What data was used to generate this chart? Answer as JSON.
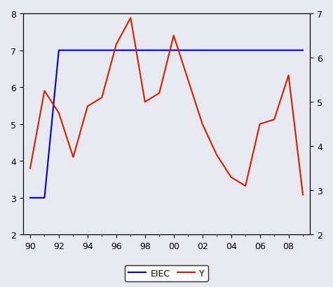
{
  "eiec_x": [
    1990,
    1991,
    1992,
    1993,
    1994,
    1995,
    1996,
    1997,
    1998,
    1999,
    2000,
    2001,
    2002,
    2003,
    2004,
    2005,
    2006,
    2007,
    2008,
    2009
  ],
  "eiec_y": [
    3.0,
    3.0,
    7.0,
    7.0,
    7.0,
    7.0,
    7.0,
    7.0,
    7.0,
    7.0,
    7.0,
    7.0,
    7.0,
    7.0,
    7.0,
    7.0,
    7.0,
    7.0,
    7.0,
    7.0
  ],
  "y_x": [
    1990,
    1991,
    1992,
    1993,
    1994,
    1995,
    1996,
    1997,
    1998,
    1999,
    2000,
    2001,
    2002,
    2003,
    2004,
    2005,
    2006,
    2007,
    2008,
    2009
  ],
  "y_y": [
    3.5,
    5.25,
    4.75,
    3.75,
    4.9,
    5.1,
    6.3,
    6.9,
    5.0,
    5.2,
    6.5,
    5.5,
    4.5,
    3.8,
    3.3,
    3.1,
    4.5,
    4.6,
    5.6,
    2.9
  ],
  "eiec_color": "#0000cc",
  "y_color": "#cc2200",
  "left_ylim": [
    2,
    8
  ],
  "right_ylim": [
    2,
    7
  ],
  "left_yticks": [
    2,
    3,
    4,
    5,
    6,
    7,
    8
  ],
  "right_yticks": [
    2,
    3,
    4,
    5,
    6,
    7
  ],
  "xtick_years": [
    1990,
    1992,
    1994,
    1996,
    1998,
    2000,
    2002,
    2004,
    2006,
    2008
  ],
  "xticklabels": [
    "90",
    "92",
    "94",
    "96",
    "98",
    "00",
    "02",
    "04",
    "06",
    "08"
  ],
  "xlim": [
    1989.5,
    2009.5
  ],
  "legend_labels": [
    "EIEC",
    "Y"
  ],
  "background_color": "#e8e8f0",
  "linewidth": 1.5
}
